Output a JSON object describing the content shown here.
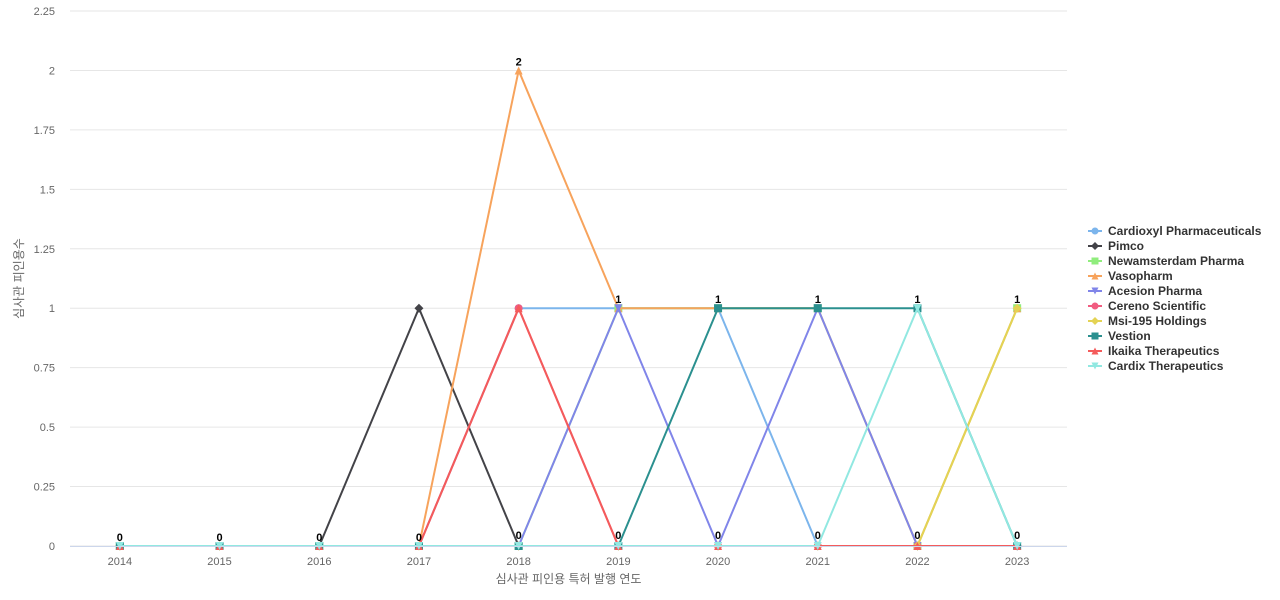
{
  "chart_data": {
    "type": "line",
    "title": "",
    "xlabel": "심사관 피인용 특허 발행 연도",
    "ylabel": "심사관 피인용수",
    "ylim": [
      0,
      2.25
    ],
    "y_ticks": [
      0,
      0.25,
      0.5,
      0.75,
      1,
      1.25,
      1.5,
      1.75,
      2,
      2.25
    ],
    "y_tick_labels": [
      "0",
      "0.25",
      "0.5",
      "0.75",
      "1",
      "1.25",
      "1.5",
      "1.75",
      "2",
      "2.25"
    ],
    "categories": [
      "2014",
      "2015",
      "2016",
      "2017",
      "2018",
      "2019",
      "2020",
      "2021",
      "2022",
      "2023"
    ],
    "grid": true,
    "legend_position": "right",
    "series": [
      {
        "name": "Cardioxyl Pharmaceuticals",
        "color": "#7cb5ec",
        "marker": "circle",
        "values": [
          0,
          0,
          0,
          0,
          1,
          1,
          1,
          0,
          0,
          0
        ]
      },
      {
        "name": "Pimco",
        "color": "#434348",
        "marker": "diamond",
        "values": [
          0,
          0,
          0,
          1,
          0,
          0,
          0,
          0,
          0,
          0
        ]
      },
      {
        "name": "Newamsterdam Pharma",
        "color": "#90ed7d",
        "marker": "square",
        "values": [
          0,
          0,
          0,
          0,
          0,
          1,
          1,
          1,
          0,
          1
        ]
      },
      {
        "name": "Vasopharm",
        "color": "#f7a35c",
        "marker": "triangle",
        "values": [
          0,
          0,
          0,
          0,
          2,
          1,
          1,
          1,
          0,
          1
        ]
      },
      {
        "name": "Acesion Pharma",
        "color": "#8085e9",
        "marker": "triangle-down",
        "values": [
          0,
          0,
          0,
          0,
          0,
          1,
          0,
          1,
          0,
          0
        ]
      },
      {
        "name": "Cereno Scientific",
        "color": "#f15c80",
        "marker": "circle",
        "values": [
          0,
          0,
          0,
          0,
          1,
          0,
          0,
          0,
          0,
          0
        ]
      },
      {
        "name": "Msi-195 Holdings",
        "color": "#e4d354",
        "marker": "diamond",
        "values": [
          0,
          0,
          0,
          0,
          0,
          0,
          0,
          0,
          0,
          1
        ]
      },
      {
        "name": "Vestion",
        "color": "#2b908f",
        "marker": "square",
        "values": [
          0,
          0,
          0,
          0,
          0,
          0,
          1,
          1,
          1,
          0
        ]
      },
      {
        "name": "Ikaika Therapeutics",
        "color": "#f45b5b",
        "marker": "triangle",
        "values": [
          0,
          0,
          0,
          0,
          1,
          0,
          0,
          0,
          0,
          0
        ]
      },
      {
        "name": "Cardix Therapeutics",
        "color": "#91e8e1",
        "marker": "triangle-down",
        "values": [
          0,
          0,
          0,
          0,
          0,
          0,
          0,
          0,
          1,
          0
        ]
      }
    ],
    "data_labels": {
      "values": [
        0,
        0,
        0,
        0,
        2,
        1,
        1,
        1,
        1,
        1
      ],
      "bottom_values": [
        0,
        0,
        0,
        0,
        0,
        0,
        0,
        0,
        0,
        0
      ]
    }
  }
}
